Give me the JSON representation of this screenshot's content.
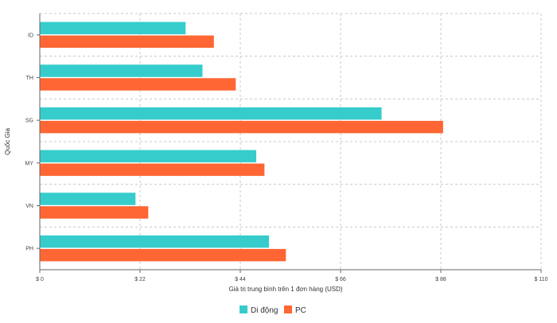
{
  "chart_data": {
    "type": "bar",
    "orientation": "horizontal",
    "categories": [
      "ID",
      "TH",
      "SG",
      "MY",
      "VN",
      "PH"
    ],
    "series": [
      {
        "name": "Di động",
        "color": "#36cccc",
        "values": [
          32,
          35.7,
          75,
          47.5,
          21,
          50.3
        ]
      },
      {
        "name": "PC",
        "color": "#ff6633",
        "values": [
          38.2,
          43,
          88.5,
          49.3,
          23.8,
          54
        ]
      }
    ],
    "xlim": [
      0,
      110
    ],
    "xticks": [
      0,
      22,
      44,
      66,
      88,
      110
    ],
    "xtick_labels": [
      "$ 0",
      "$ 22",
      "$ 44",
      "$ 66",
      "$ 88",
      "$ 110"
    ],
    "xlabel": "Giá trị trung bình trên 1 đơn hàng (USD)",
    "ylabel": "Quốc Gia",
    "grid": true,
    "legend_position": "bottom-center"
  }
}
